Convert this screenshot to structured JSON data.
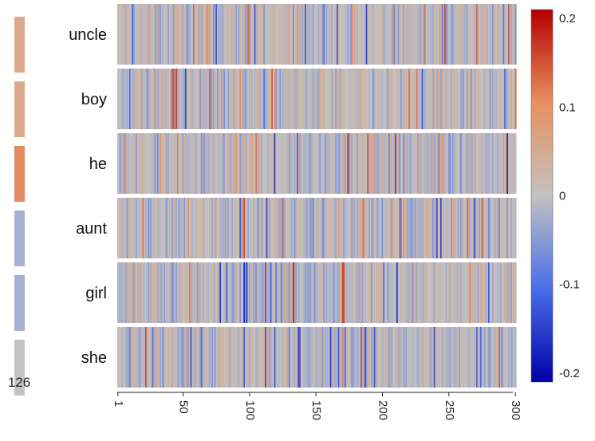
{
  "chart_data": {
    "type": "heatmap",
    "rows": [
      {
        "label": "uncle",
        "side_color": "#dca889"
      },
      {
        "label": "boy",
        "side_color": "#dca889"
      },
      {
        "label": "he",
        "side_color": "#e08a5f"
      },
      {
        "label": "aunt",
        "side_color": "#a7b0d4"
      },
      {
        "label": "girl",
        "side_color": "#a7b0d4"
      },
      {
        "label": "she",
        "side_color": "#c3c3c3"
      }
    ],
    "side_value": "126",
    "dimensions": 300,
    "x_ticks": [
      1,
      50,
      100,
      150,
      200,
      250,
      300
    ],
    "value_range": [
      -0.21,
      0.21
    ],
    "colorbar": {
      "ticks": [
        {
          "value": 0.2,
          "label": "0.2"
        },
        {
          "value": 0.1,
          "label": "0.1"
        },
        {
          "value": 0,
          "label": "0"
        },
        {
          "value": -0.1,
          "label": "-0.1"
        },
        {
          "value": -0.2,
          "label": "-0.2"
        }
      ],
      "colormap": "coolwarm",
      "stops": [
        "#0000a8",
        "#4a6ee8",
        "#c2c2c2",
        "#e8905f",
        "#b40000"
      ]
    },
    "cell_values_note_free": true
  }
}
